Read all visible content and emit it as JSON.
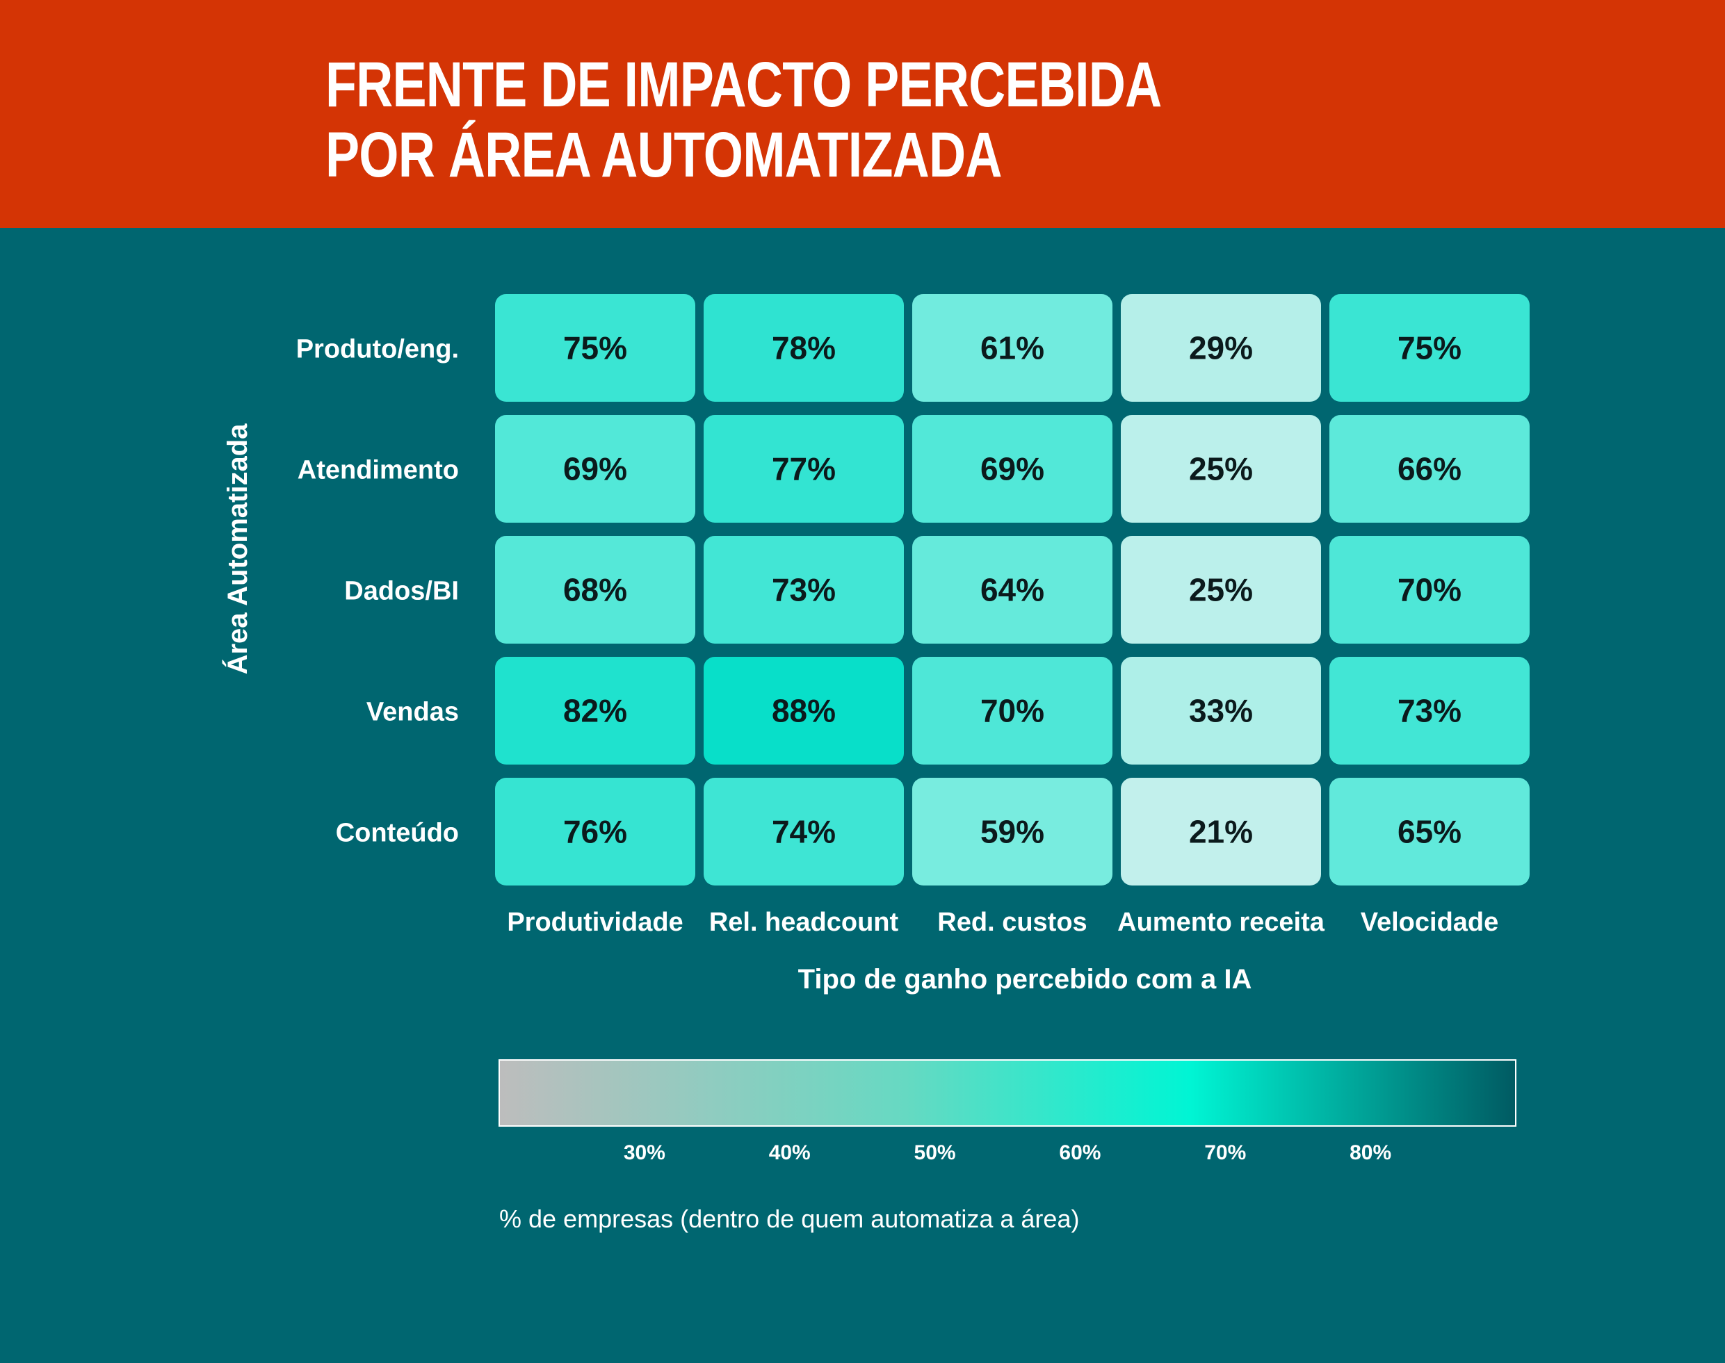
{
  "title": {
    "line1": "FRENTE DE IMPACTO PERCEBIDA",
    "line2": "POR ÁREA AUTOMATIZADA"
  },
  "colors": {
    "header_bg": "#d43405",
    "page_bg": "#006670",
    "scale": [
      "#bdbdbd",
      "#66d9c2",
      "#00f5d4",
      "#005a62"
    ]
  },
  "chart_data": {
    "type": "heatmap",
    "ylabel": "Área Automatizada",
    "xlabel": "Tipo de ganho percebido com a IA",
    "rows": [
      "Produto/eng.",
      "Atendimento",
      "Dados/BI",
      "Vendas",
      "Conteúdo"
    ],
    "columns": [
      "Produtividade",
      "Rel. headcount",
      "Red. custos",
      "Aumento receita",
      "Velocidade"
    ],
    "values": [
      [
        75,
        78,
        61,
        29,
        75
      ],
      [
        69,
        77,
        69,
        25,
        66
      ],
      [
        68,
        73,
        64,
        25,
        70
      ],
      [
        82,
        88,
        70,
        33,
        73
      ],
      [
        76,
        74,
        59,
        21,
        65
      ]
    ],
    "value_suffix": "%",
    "colorbar": {
      "min": 20,
      "max": 90,
      "ticks": [
        30,
        40,
        50,
        60,
        70,
        80
      ],
      "tick_labels": [
        "30%",
        "40%",
        "50%",
        "60%",
        "70%",
        "80%"
      ],
      "caption": "% de empresas (dentro de quem automatiza a área)"
    }
  }
}
